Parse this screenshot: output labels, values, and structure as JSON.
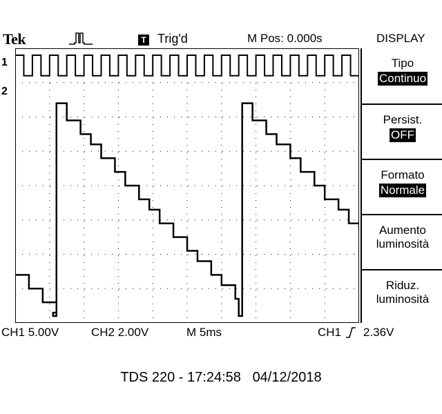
{
  "header": {
    "brand": "Tek",
    "trigger_box": "T",
    "trigger_status": "Trig'd",
    "main_position": "M Pos: 0.000s",
    "menu_title": "DISPLAY",
    "acquisition_icon": "pulse-run-icon"
  },
  "channel_markers": {
    "ch1": "1",
    "ch2": "2"
  },
  "side_menu": [
    {
      "label": "Tipo",
      "value": "Continuo"
    },
    {
      "label": "Persist.",
      "value": "OFF"
    },
    {
      "label": "Formato",
      "value": "Normale"
    },
    {
      "label": "Aumento",
      "label2": "luminosità"
    },
    {
      "label": "Riduz.",
      "label2": "luminosità"
    }
  ],
  "status_bar": {
    "ch1_scale": "CH1  5.00V",
    "ch2_scale": "CH2  2.00V",
    "timebase": "M  5ms",
    "trigger_source": "CH1",
    "trigger_slope_icon": "rising-edge-icon",
    "trigger_level": "2.36V"
  },
  "footer": {
    "model": "TDS 220",
    "time": "17:24:58",
    "date": "04/12/2018"
  },
  "chart_data": {
    "type": "line",
    "title": "",
    "xlabel": "",
    "ylabel": "",
    "x_divisions": 10,
    "y_divisions": 8,
    "grid": true,
    "series": [
      {
        "name": "CH1",
        "kind": "square-wave",
        "period_divisions": 0.5,
        "low_div": 7.2,
        "high_div": 7.8
      },
      {
        "name": "CH2",
        "kind": "staircase-sawtooth",
        "points_div": [
          [
            0.0,
            1.4
          ],
          [
            0.4,
            1.0
          ],
          [
            0.8,
            0.6
          ],
          [
            1.2,
            0.3
          ],
          [
            1.1,
            0.2
          ],
          [
            1.2,
            6.4
          ],
          [
            1.5,
            5.9
          ],
          [
            1.9,
            5.5
          ],
          [
            2.2,
            5.2
          ],
          [
            2.5,
            4.8
          ],
          [
            2.9,
            4.4
          ],
          [
            3.2,
            4.0
          ],
          [
            3.6,
            3.6
          ],
          [
            3.9,
            3.3
          ],
          [
            4.2,
            2.9
          ],
          [
            4.6,
            2.5
          ],
          [
            5.0,
            2.1
          ],
          [
            5.3,
            1.8
          ],
          [
            5.7,
            1.4
          ],
          [
            6.0,
            1.1
          ],
          [
            6.4,
            0.7
          ],
          [
            6.5,
            0.2
          ],
          [
            6.6,
            6.4
          ],
          [
            6.9,
            5.9
          ],
          [
            7.3,
            5.5
          ],
          [
            7.6,
            5.2
          ],
          [
            8.0,
            4.8
          ],
          [
            8.3,
            4.4
          ],
          [
            8.7,
            4.0
          ],
          [
            9.0,
            3.6
          ],
          [
            9.4,
            3.3
          ],
          [
            9.7,
            2.9
          ],
          [
            10.0,
            2.7
          ]
        ]
      }
    ]
  }
}
